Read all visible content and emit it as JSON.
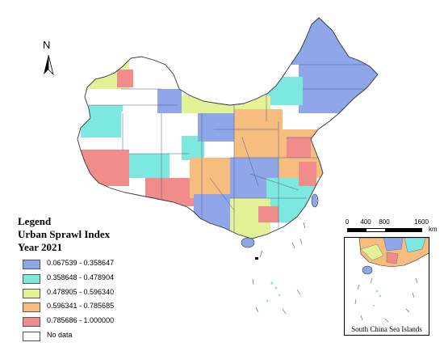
{
  "north": {
    "label": "N"
  },
  "legend": {
    "title": "Legend",
    "subtitle": "Urban Sprawl Index",
    "year": "Year 2021",
    "items": [
      {
        "label": "0.067539 - 0.358647",
        "color": "#8fa7e8"
      },
      {
        "label": "0.358648 - 0.478904",
        "color": "#7de8e0"
      },
      {
        "label": "0.478905 - 0.596340",
        "color": "#e3f296"
      },
      {
        "label": "0.596341 - 0.785685",
        "color": "#f6bd7e"
      },
      {
        "label": "0.785686 - 1.000000",
        "color": "#f28b8b"
      },
      {
        "label": "No data",
        "color": "#ffffff"
      }
    ]
  },
  "scale": {
    "labels": [
      "0",
      "400",
      "800",
      "1600"
    ],
    "unit": "km"
  },
  "inset": {
    "caption": "South China Sea Islands"
  },
  "map_data": {
    "type": "choropleth",
    "subject": "Urban sprawl index by prefecture-level region, China, 2021",
    "classes": 5,
    "no_data_color": "#ffffff",
    "boundary_color": "#4a5a8a"
  }
}
